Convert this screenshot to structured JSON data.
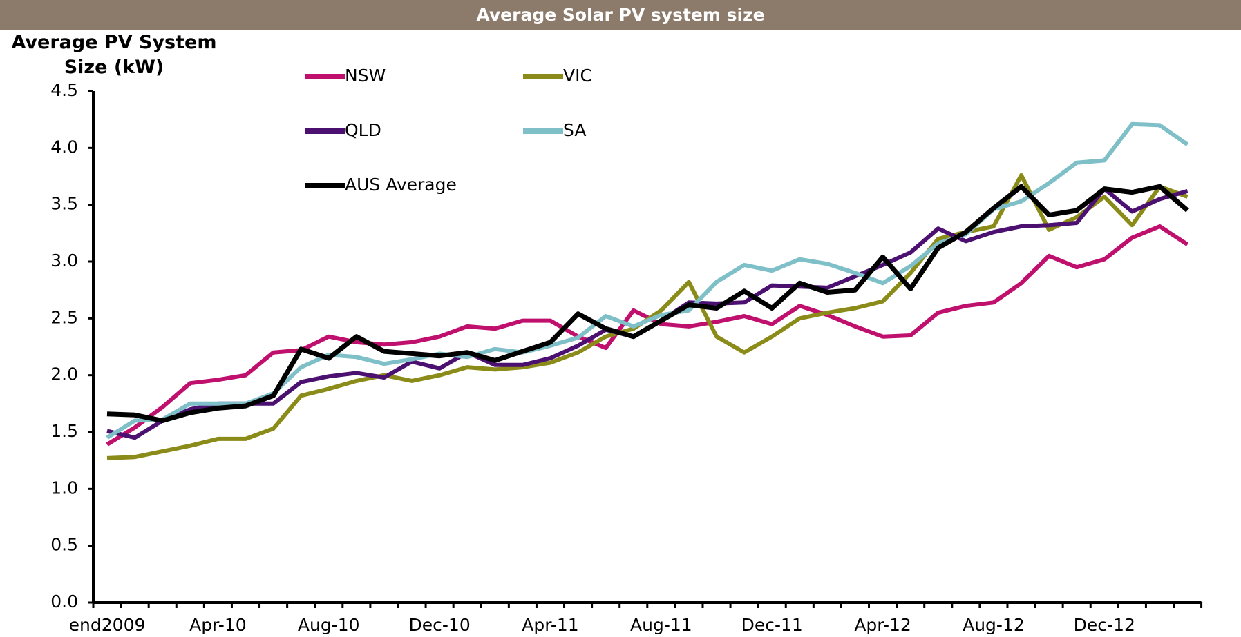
{
  "chart_data": {
    "type": "line",
    "title": "Average Solar PV system size",
    "y_label": "Average PV System Size (kW)",
    "categories": [
      "end2009",
      null,
      null,
      null,
      "Apr-10",
      null,
      null,
      null,
      "Aug-10",
      null,
      null,
      null,
      "Dec-10",
      null,
      null,
      null,
      "Apr-11",
      null,
      null,
      null,
      "Aug-11",
      null,
      null,
      null,
      "Dec-11",
      null,
      null,
      null,
      "Apr-12",
      null,
      null,
      null,
      "Aug-12",
      null,
      null,
      null,
      "Dec-12",
      null,
      null,
      null
    ],
    "series": [
      {
        "name": "NSW",
        "color": "#c0106e",
        "values": [
          1.39,
          1.54,
          1.72,
          1.93,
          1.96,
          2.0,
          2.2,
          2.22,
          2.34,
          2.29,
          2.27,
          2.29,
          2.34,
          2.43,
          2.41,
          2.48,
          2.48,
          2.34,
          2.24,
          2.57,
          2.45,
          2.43,
          2.47,
          2.52,
          2.45,
          2.61,
          2.53,
          2.43,
          2.34,
          2.35,
          2.55,
          2.61,
          2.64,
          2.81,
          3.05,
          2.95,
          3.02,
          3.21,
          3.31,
          3.15
        ]
      },
      {
        "name": "VIC",
        "color": "#8b8b1a",
        "values": [
          1.27,
          1.28,
          1.33,
          1.38,
          1.44,
          1.44,
          1.53,
          1.82,
          1.88,
          1.95,
          2.0,
          1.95,
          2.0,
          2.07,
          2.05,
          2.07,
          2.11,
          2.2,
          2.34,
          2.41,
          2.57,
          2.82,
          2.34,
          2.2,
          2.34,
          2.5,
          2.55,
          2.59,
          2.65,
          2.9,
          3.2,
          3.26,
          3.31,
          3.76,
          3.28,
          3.39,
          3.57,
          3.32,
          3.66,
          3.57
        ]
      },
      {
        "name": "QLD",
        "color": "#4b1070",
        "values": [
          1.51,
          1.45,
          1.6,
          1.7,
          1.75,
          1.75,
          1.75,
          1.94,
          1.99,
          2.02,
          1.98,
          2.12,
          2.06,
          2.2,
          2.09,
          2.09,
          2.15,
          2.26,
          2.4,
          2.34,
          2.48,
          2.64,
          2.63,
          2.64,
          2.79,
          2.78,
          2.77,
          2.87,
          2.97,
          3.08,
          3.29,
          3.18,
          3.26,
          3.31,
          3.32,
          3.34,
          3.64,
          3.44,
          3.55,
          3.62
        ]
      },
      {
        "name": "SA",
        "color": "#7fbfc8",
        "values": [
          1.45,
          1.6,
          1.61,
          1.75,
          1.75,
          1.75,
          1.84,
          2.07,
          2.18,
          2.16,
          2.1,
          2.14,
          2.19,
          2.16,
          2.23,
          2.2,
          2.26,
          2.33,
          2.52,
          2.43,
          2.53,
          2.57,
          2.82,
          2.97,
          2.92,
          3.02,
          2.98,
          2.9,
          2.81,
          2.96,
          3.16,
          3.24,
          3.46,
          3.53,
          3.69,
          3.87,
          3.89,
          4.21,
          4.2,
          4.03
        ]
      },
      {
        "name": "AUS Average",
        "color": "#000000",
        "values": [
          1.66,
          1.65,
          1.6,
          1.67,
          1.71,
          1.73,
          1.82,
          2.23,
          2.15,
          2.34,
          2.21,
          2.19,
          2.17,
          2.2,
          2.13,
          2.21,
          2.29,
          2.54,
          2.41,
          2.34,
          2.48,
          2.62,
          2.59,
          2.74,
          2.59,
          2.81,
          2.73,
          2.75,
          3.04,
          2.76,
          3.12,
          3.26,
          3.47,
          3.66,
          3.41,
          3.45,
          3.64,
          3.61,
          3.66,
          3.45
        ]
      }
    ],
    "ylim": [
      0,
      4.5
    ],
    "yticks": [
      {
        "value": 0,
        "label": "0.0"
      },
      0.5,
      {
        "value": 1,
        "label": "1.0"
      },
      1.5,
      {
        "value": 2,
        "label": "2.0"
      },
      2.5,
      {
        "value": 3,
        "label": "3.0"
      },
      3.5,
      {
        "value": 4,
        "label": "4.0"
      },
      4.5
    ],
    "grid": false,
    "legend": "top"
  }
}
